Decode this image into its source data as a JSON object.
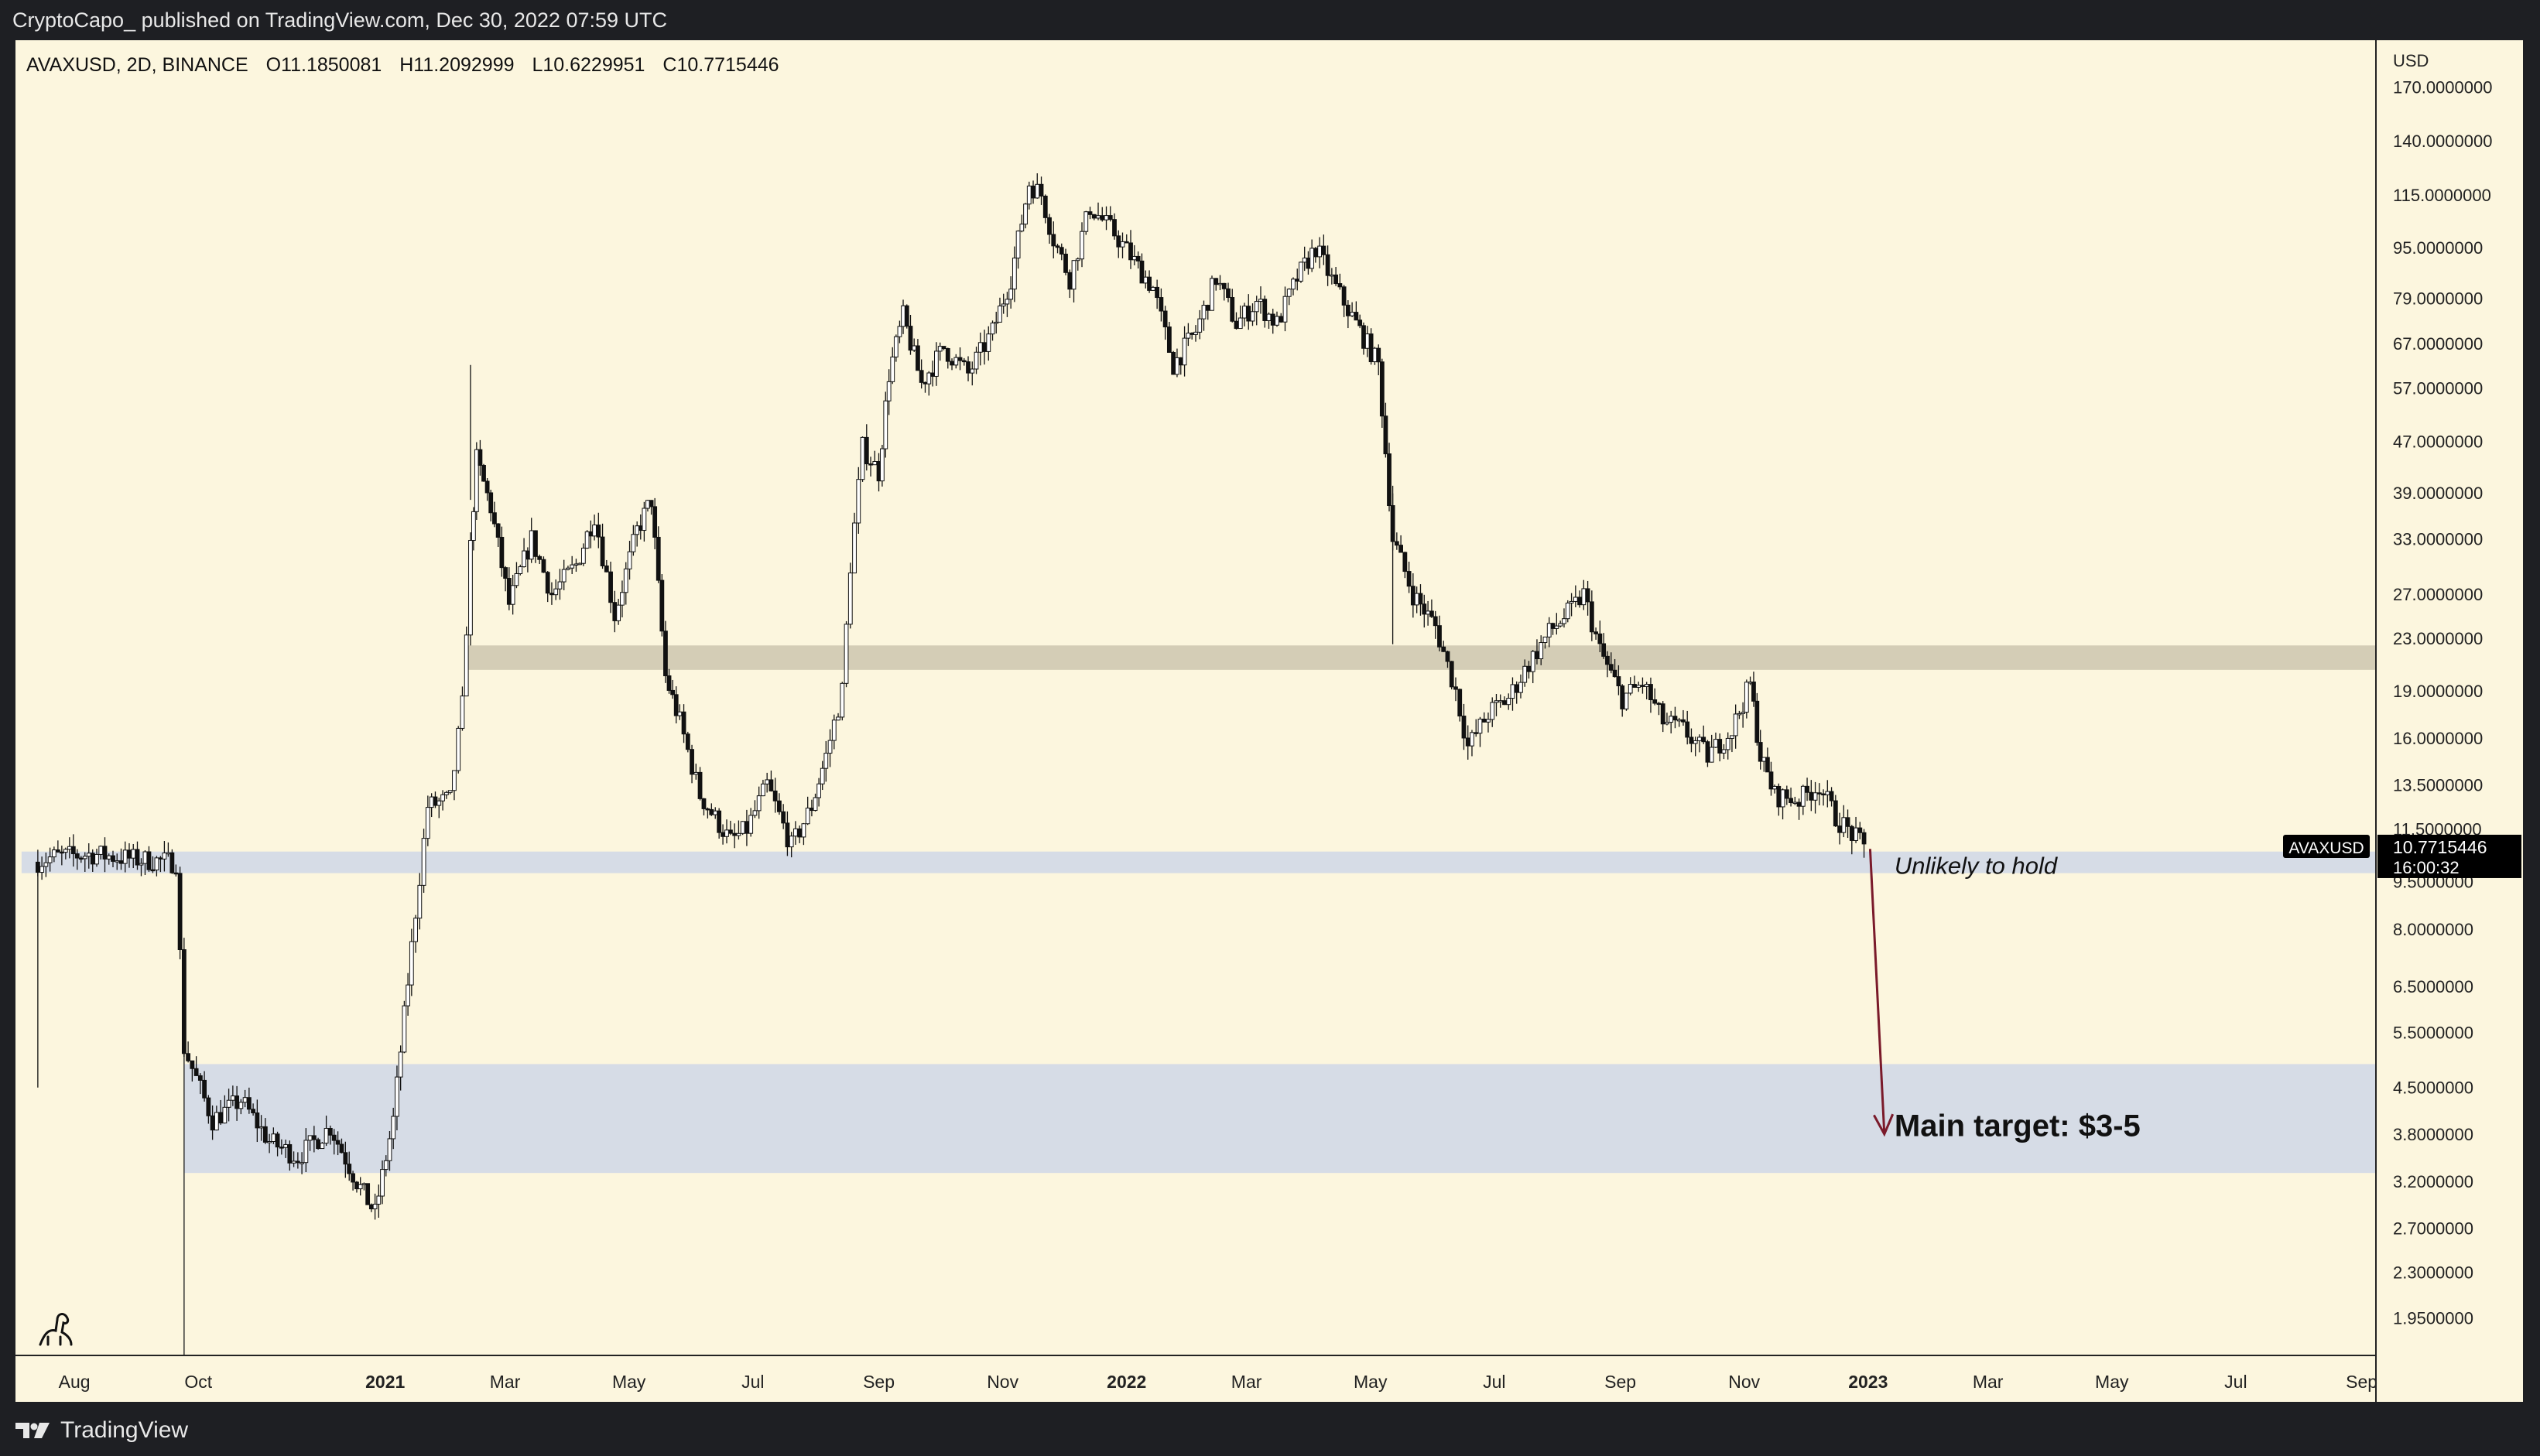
{
  "header": {
    "published": "CryptoCapo_ published on TradingView.com, Dec 30, 2022 07:59 UTC"
  },
  "footer": {
    "brand": "TradingView",
    "logo_icon": "tradingview-logo-icon"
  },
  "colors": {
    "background": "#fcf6de",
    "candle": "#111111",
    "support_zone": "#d6dce6",
    "resistance_zone": "#d4cdb6",
    "arrow": "#7a1a2a"
  },
  "chart_data": {
    "type": "candlestick",
    "symbol_line": {
      "symbol": "AVAXUSD, 2D, BINANCE",
      "open": "O11.1850081",
      "high": "H11.2092999",
      "low": "L10.6229951",
      "close": "C10.7715446"
    },
    "currency": "USD",
    "y_scale": "log",
    "y_range": [
      1.75,
      196
    ],
    "x_range": [
      "2020-07-03",
      "2023-09-08"
    ],
    "y_ticks": [
      {
        "v": 170,
        "label": "170.0000000"
      },
      {
        "v": 140,
        "label": "140.0000000"
      },
      {
        "v": 115,
        "label": "115.0000000"
      },
      {
        "v": 95,
        "label": "95.0000000"
      },
      {
        "v": 79,
        "label": "79.0000000"
      },
      {
        "v": 67,
        "label": "67.0000000"
      },
      {
        "v": 57,
        "label": "57.0000000"
      },
      {
        "v": 47,
        "label": "47.0000000"
      },
      {
        "v": 39,
        "label": "39.0000000"
      },
      {
        "v": 33,
        "label": "33.0000000"
      },
      {
        "v": 27,
        "label": "27.0000000"
      },
      {
        "v": 23,
        "label": "23.0000000"
      },
      {
        "v": 19,
        "label": "19.0000000"
      },
      {
        "v": 16,
        "label": "16.0000000"
      },
      {
        "v": 13.5,
        "label": "13.5000000"
      },
      {
        "v": 11.5,
        "label": "11.5000000"
      },
      {
        "v": 9.5,
        "label": "9.5000000"
      },
      {
        "v": 8,
        "label": "8.0000000"
      },
      {
        "v": 6.5,
        "label": "6.5000000"
      },
      {
        "v": 5.5,
        "label": "5.5000000"
      },
      {
        "v": 4.5,
        "label": "4.5000000"
      },
      {
        "v": 3.8,
        "label": "3.8000000"
      },
      {
        "v": 3.2,
        "label": "3.2000000"
      },
      {
        "v": 2.7,
        "label": "2.7000000"
      },
      {
        "v": 2.3,
        "label": "2.3000000"
      },
      {
        "v": 1.95,
        "label": "1.9500000"
      }
    ],
    "x_ticks": [
      {
        "date": "2020-08-01",
        "label": "Aug",
        "bold": false
      },
      {
        "date": "2020-10-01",
        "label": "Oct",
        "bold": false
      },
      {
        "date": "2021-01-01",
        "label": "2021",
        "bold": true
      },
      {
        "date": "2021-03-01",
        "label": "Mar",
        "bold": false
      },
      {
        "date": "2021-05-01",
        "label": "May",
        "bold": false
      },
      {
        "date": "2021-07-01",
        "label": "Jul",
        "bold": false
      },
      {
        "date": "2021-09-01",
        "label": "Sep",
        "bold": false
      },
      {
        "date": "2021-11-01",
        "label": "Nov",
        "bold": false
      },
      {
        "date": "2022-01-01",
        "label": "2022",
        "bold": true
      },
      {
        "date": "2022-03-01",
        "label": "Mar",
        "bold": false
      },
      {
        "date": "2022-05-01",
        "label": "May",
        "bold": false
      },
      {
        "date": "2022-07-01",
        "label": "Jul",
        "bold": false
      },
      {
        "date": "2022-09-01",
        "label": "Sep",
        "bold": false
      },
      {
        "date": "2022-11-01",
        "label": "Nov",
        "bold": false
      },
      {
        "date": "2023-01-01",
        "label": "2023",
        "bold": true
      },
      {
        "date": "2023-03-01",
        "label": "Mar",
        "bold": false
      },
      {
        "date": "2023-05-01",
        "label": "May",
        "bold": false
      },
      {
        "date": "2023-07-01",
        "label": "Jul",
        "bold": false
      },
      {
        "date": "2023-09-01",
        "label": "Sep",
        "bold": false
      }
    ],
    "price_path": [
      [
        "2020-07-12",
        10.2
      ],
      [
        "2020-07-22",
        10.4
      ],
      [
        "2020-08-10",
        10.5
      ],
      [
        "2020-09-01",
        10.3
      ],
      [
        "2020-09-20",
        10.2
      ],
      [
        "2020-09-24",
        5.2
      ],
      [
        "2020-10-08",
        4.0
      ],
      [
        "2020-10-22",
        4.3
      ],
      [
        "2020-11-05",
        3.7
      ],
      [
        "2020-11-19",
        3.5
      ],
      [
        "2020-12-05",
        3.9
      ],
      [
        "2020-12-18",
        3.2
      ],
      [
        "2020-12-27",
        2.85
      ],
      [
        "2021-01-05",
        4.0
      ],
      [
        "2021-01-14",
        7.5
      ],
      [
        "2021-01-22",
        12.5
      ],
      [
        "2021-02-02",
        12.8
      ],
      [
        "2021-02-08",
        18.0
      ],
      [
        "2021-02-12",
        32.0
      ],
      [
        "2021-02-15",
        44.0
      ],
      [
        "2021-02-22",
        37.0
      ],
      [
        "2021-03-03",
        26.0
      ],
      [
        "2021-03-14",
        33.0
      ],
      [
        "2021-03-24",
        27.0
      ],
      [
        "2021-04-05",
        30.0
      ],
      [
        "2021-04-14",
        36.0
      ],
      [
        "2021-04-24",
        25.0
      ],
      [
        "2021-05-05",
        34.0
      ],
      [
        "2021-05-12",
        38.0
      ],
      [
        "2021-05-19",
        20.0
      ],
      [
        "2021-05-26",
        17.0
      ],
      [
        "2021-06-05",
        13.0
      ],
      [
        "2021-06-20",
        11.0
      ],
      [
        "2021-06-28",
        11.5
      ],
      [
        "2021-07-08",
        13.5
      ],
      [
        "2021-07-20",
        10.8
      ],
      [
        "2021-07-30",
        12.5
      ],
      [
        "2021-08-06",
        15.0
      ],
      [
        "2021-08-14",
        19.0
      ],
      [
        "2021-08-18",
        30.0
      ],
      [
        "2021-08-24",
        46.0
      ],
      [
        "2021-09-01",
        42.0
      ],
      [
        "2021-09-06",
        60.0
      ],
      [
        "2021-09-13",
        74.0
      ],
      [
        "2021-09-22",
        58.0
      ],
      [
        "2021-10-03",
        66.0
      ],
      [
        "2021-10-15",
        60.0
      ],
      [
        "2021-10-27",
        70.0
      ],
      [
        "2021-11-05",
        85.0
      ],
      [
        "2021-11-14",
        120.0
      ],
      [
        "2021-11-20",
        115.0
      ],
      [
        "2021-11-26",
        98.0
      ],
      [
        "2021-12-04",
        85.0
      ],
      [
        "2021-12-14",
        110.0
      ],
      [
        "2021-12-26",
        100.0
      ],
      [
        "2022-01-03",
        92.0
      ],
      [
        "2022-01-14",
        82.0
      ],
      [
        "2022-01-24",
        62.0
      ],
      [
        "2022-02-04",
        70.0
      ],
      [
        "2022-02-14",
        85.0
      ],
      [
        "2022-02-24",
        72.0
      ],
      [
        "2022-03-06",
        78.0
      ],
      [
        "2022-03-16",
        72.0
      ],
      [
        "2022-03-26",
        85.0
      ],
      [
        "2022-04-04",
        95.0
      ],
      [
        "2022-04-14",
        82.0
      ],
      [
        "2022-04-24",
        72.0
      ],
      [
        "2022-05-05",
        62.0
      ],
      [
        "2022-05-12",
        33.0
      ],
      [
        "2022-05-22",
        27.0
      ],
      [
        "2022-06-02",
        24.0
      ],
      [
        "2022-06-12",
        19.0
      ],
      [
        "2022-06-18",
        15.5
      ],
      [
        "2022-06-28",
        17.5
      ],
      [
        "2022-07-08",
        18.5
      ],
      [
        "2022-07-18",
        21.0
      ],
      [
        "2022-07-28",
        23.5
      ],
      [
        "2022-08-08",
        25.5
      ],
      [
        "2022-08-14",
        27.0
      ],
      [
        "2022-08-22",
        22.0
      ],
      [
        "2022-09-02",
        18.5
      ],
      [
        "2022-09-12",
        19.5
      ],
      [
        "2022-09-22",
        17.0
      ],
      [
        "2022-10-02",
        16.5
      ],
      [
        "2022-10-14",
        15.0
      ],
      [
        "2022-10-26",
        16.5
      ],
      [
        "2022-11-04",
        19.5
      ],
      [
        "2022-11-09",
        15.0
      ],
      [
        "2022-11-16",
        13.0
      ],
      [
        "2022-11-28",
        12.8
      ],
      [
        "2022-12-08",
        13.5
      ],
      [
        "2022-12-16",
        12.0
      ],
      [
        "2022-12-24",
        11.3
      ],
      [
        "2022-12-30",
        10.77
      ]
    ],
    "zones": [
      {
        "name": "resistance-zone",
        "x0": "2021-02-11",
        "x1": "2023-09-08",
        "low": 20.5,
        "high": 22.4
      },
      {
        "name": "support-zone",
        "x0": "2020-07-06",
        "x1": "2023-09-08",
        "low": 9.8,
        "high": 10.6
      },
      {
        "name": "target-zone",
        "x0": "2020-09-24",
        "x1": "2023-09-08",
        "low": 3.3,
        "high": 4.9
      }
    ],
    "vertical_line": {
      "date": "2020-09-24"
    },
    "arrow": {
      "from": [
        "2023-01-02",
        10.7
      ],
      "to": [
        "2023-01-09",
        3.8
      ]
    },
    "annotations": [
      {
        "text": "Unlikely to hold",
        "date": "2023-01-14",
        "value": 10.05,
        "italic": true,
        "bold": false
      },
      {
        "text": "Main target: $3-5",
        "date": "2023-01-14",
        "value": 3.9,
        "italic": false,
        "bold": true
      }
    ],
    "last_price": {
      "symbol": "AVAXUSD",
      "price": "10.7715446",
      "countdown": "16:00:32",
      "value": 10.7715446
    }
  }
}
